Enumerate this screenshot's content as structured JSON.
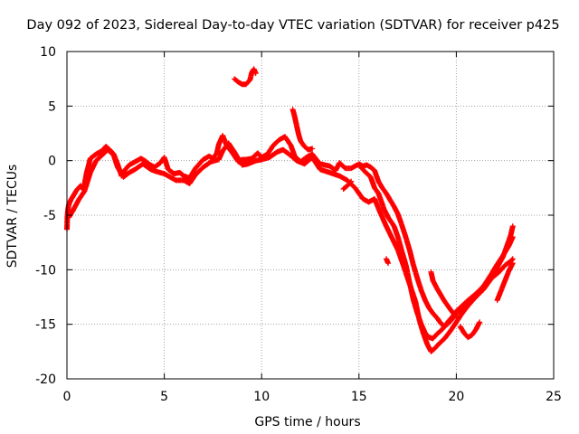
{
  "chart_data": {
    "type": "scatter",
    "title": "Day 092 of 2023, Sidereal Day-to-day VTEC variation (SDTVAR) for receiver p425",
    "xlabel": "GPS time / hours",
    "ylabel": "SDTVAR / TECUs",
    "xlim": [
      0,
      25
    ],
    "ylim": [
      -20,
      10
    ],
    "xticks": [
      0,
      5,
      10,
      15,
      20,
      25
    ],
    "yticks": [
      10,
      5,
      0,
      -5,
      -10,
      -15,
      -20
    ],
    "xtick_labels": [
      "0",
      "5",
      "10",
      "15",
      "20",
      "25"
    ],
    "ytick_labels": [
      "10",
      "5",
      "0",
      "-5",
      "-10",
      "-15",
      "-20"
    ],
    "grid": true,
    "marker": "+",
    "series": [
      {
        "name": "p425",
        "color": "#ff0000",
        "tracks": [
          [
            [
              0.0,
              -6.3
            ],
            [
              0.02,
              -5.2
            ],
            [
              0.05,
              -4.5
            ],
            [
              0.1,
              -4.0
            ],
            [
              0.2,
              -3.6
            ],
            [
              0.3,
              -3.3
            ],
            [
              0.4,
              -3.0
            ],
            [
              0.5,
              -2.7
            ],
            [
              0.6,
              -2.5
            ],
            [
              0.7,
              -2.3
            ],
            [
              0.8,
              -2.6
            ],
            [
              0.9,
              -2.2
            ],
            [
              1.0,
              -1.2
            ],
            [
              1.2,
              0.2
            ],
            [
              1.5,
              0.6
            ],
            [
              1.8,
              0.9
            ],
            [
              2.0,
              1.3
            ],
            [
              2.2,
              1.0
            ],
            [
              2.4,
              0.6
            ],
            [
              2.6,
              -0.3
            ],
            [
              2.8,
              -1.4
            ],
            [
              3.0,
              -0.8
            ],
            [
              3.2,
              -0.4
            ],
            [
              3.5,
              -0.1
            ],
            [
              3.8,
              0.2
            ],
            [
              4.0,
              0.0
            ],
            [
              4.2,
              -0.3
            ],
            [
              4.5,
              -0.6
            ],
            [
              4.8,
              -0.2
            ],
            [
              5.0,
              0.3
            ],
            [
              5.2,
              -0.8
            ],
            [
              5.5,
              -1.2
            ],
            [
              5.8,
              -1.1
            ],
            [
              6.0,
              -1.4
            ],
            [
              6.3,
              -1.6
            ],
            [
              6.6,
              -0.7
            ],
            [
              7.0,
              0.1
            ],
            [
              7.3,
              0.4
            ],
            [
              7.5,
              0.2
            ],
            [
              7.7,
              0.7
            ],
            [
              7.8,
              1.5
            ],
            [
              8.0,
              2.3
            ],
            [
              8.2,
              1.4
            ],
            [
              8.5,
              0.7
            ],
            [
              8.8,
              -0.1
            ],
            [
              9.0,
              0.1
            ],
            [
              9.2,
              0.1
            ],
            [
              9.5,
              0.2
            ],
            [
              9.8,
              0.7
            ],
            [
              10.0,
              0.3
            ],
            [
              10.3,
              0.6
            ],
            [
              10.6,
              1.4
            ],
            [
              10.9,
              1.9
            ],
            [
              11.2,
              2.2
            ],
            [
              11.5,
              1.4
            ],
            [
              11.7,
              0.4
            ],
            [
              12.0,
              -0.1
            ],
            [
              12.3,
              0.3
            ],
            [
              12.6,
              0.6
            ],
            [
              13.0,
              -0.3
            ],
            [
              13.5,
              -0.5
            ],
            [
              13.8,
              -0.9
            ],
            [
              14.0,
              -0.2
            ],
            [
              14.3,
              -0.7
            ],
            [
              14.6,
              -0.7
            ],
            [
              14.9,
              -0.4
            ],
            [
              15.0,
              -0.4
            ],
            [
              15.3,
              -1.0
            ],
            [
              15.6,
              -1.5
            ],
            [
              15.8,
              -2.5
            ],
            [
              16.0,
              -3.0
            ],
            [
              16.3,
              -4.5
            ],
            [
              16.5,
              -5.2
            ],
            [
              16.8,
              -6.0
            ],
            [
              17.0,
              -7.0
            ],
            [
              17.2,
              -8.3
            ],
            [
              17.4,
              -9.5
            ],
            [
              17.6,
              -11.2
            ],
            [
              17.8,
              -12.8
            ],
            [
              18.0,
              -14.0
            ],
            [
              18.2,
              -15.0
            ],
            [
              18.4,
              -15.8
            ],
            [
              18.6,
              -16.2
            ],
            [
              18.8,
              -16.3
            ],
            [
              19.0,
              -15.9
            ],
            [
              19.2,
              -15.6
            ],
            [
              19.4,
              -15.2
            ],
            [
              19.6,
              -14.7
            ],
            [
              19.8,
              -14.3
            ],
            [
              20.0,
              -13.8
            ],
            [
              20.3,
              -13.3
            ],
            [
              20.6,
              -12.8
            ],
            [
              21.0,
              -12.2
            ],
            [
              21.4,
              -11.5
            ],
            [
              21.8,
              -10.8
            ],
            [
              22.2,
              -10.2
            ],
            [
              22.5,
              -9.6
            ],
            [
              22.8,
              -9.2
            ],
            [
              22.9,
              -9.0
            ]
          ],
          [
            [
              0.1,
              -5.2
            ],
            [
              0.3,
              -4.6
            ],
            [
              0.6,
              -3.6
            ],
            [
              0.9,
              -2.8
            ],
            [
              1.2,
              -1.1
            ],
            [
              1.5,
              0.0
            ],
            [
              1.8,
              0.5
            ],
            [
              2.1,
              1.0
            ],
            [
              2.4,
              0.5
            ],
            [
              2.6,
              -0.6
            ],
            [
              2.9,
              -1.5
            ],
            [
              3.2,
              -1.1
            ],
            [
              3.5,
              -0.8
            ],
            [
              3.9,
              -0.3
            ],
            [
              4.3,
              -0.8
            ],
            [
              4.6,
              -1.0
            ],
            [
              5.0,
              -1.2
            ],
            [
              5.3,
              -1.5
            ],
            [
              5.6,
              -1.8
            ],
            [
              6.0,
              -1.8
            ],
            [
              6.3,
              -2.1
            ],
            [
              6.6,
              -1.3
            ],
            [
              7.0,
              -0.6
            ],
            [
              7.4,
              -0.1
            ],
            [
              7.8,
              0.1
            ],
            [
              8.0,
              0.9
            ],
            [
              8.3,
              1.6
            ],
            [
              8.6,
              0.8
            ],
            [
              9.0,
              -0.4
            ],
            [
              9.3,
              -0.3
            ],
            [
              9.7,
              0.0
            ],
            [
              10.0,
              0.1
            ],
            [
              10.4,
              0.3
            ],
            [
              10.8,
              0.8
            ],
            [
              11.1,
              1.0
            ],
            [
              11.4,
              0.6
            ],
            [
              11.8,
              0.0
            ],
            [
              12.2,
              -0.3
            ],
            [
              12.6,
              0.3
            ],
            [
              13.0,
              -0.8
            ],
            [
              13.5,
              -1.1
            ],
            [
              14.0,
              -1.4
            ],
            [
              14.4,
              -1.8
            ],
            [
              14.8,
              -2.5
            ],
            [
              15.2,
              -3.5
            ],
            [
              15.5,
              -3.8
            ],
            [
              15.8,
              -3.5
            ],
            [
              16.1,
              -4.8
            ],
            [
              16.4,
              -6.0
            ],
            [
              16.7,
              -7.1
            ],
            [
              17.0,
              -8.2
            ],
            [
              17.3,
              -9.7
            ],
            [
              17.6,
              -11.3
            ],
            [
              17.9,
              -12.9
            ],
            [
              18.1,
              -14.6
            ],
            [
              18.3,
              -15.8
            ],
            [
              18.5,
              -16.8
            ],
            [
              18.7,
              -17.5
            ],
            [
              18.9,
              -17.2
            ],
            [
              19.1,
              -16.8
            ],
            [
              19.4,
              -16.3
            ],
            [
              19.7,
              -15.6
            ],
            [
              20.0,
              -14.8
            ],
            [
              20.3,
              -14.0
            ],
            [
              20.6,
              -13.3
            ],
            [
              21.0,
              -12.5
            ],
            [
              21.4,
              -11.5
            ],
            [
              21.8,
              -10.4
            ],
            [
              22.1,
              -9.5
            ],
            [
              22.4,
              -8.7
            ],
            [
              22.7,
              -7.8
            ],
            [
              22.9,
              -7.0
            ]
          ],
          [
            [
              15.0,
              -0.3
            ],
            [
              15.2,
              -0.5
            ],
            [
              15.4,
              -0.4
            ],
            [
              15.6,
              -0.6
            ],
            [
              15.8,
              -0.9
            ],
            [
              16.0,
              -1.9
            ],
            [
              16.2,
              -2.5
            ],
            [
              16.4,
              -3.0
            ],
            [
              16.6,
              -3.6
            ],
            [
              16.8,
              -4.2
            ],
            [
              17.0,
              -4.9
            ],
            [
              17.2,
              -5.9
            ],
            [
              17.4,
              -7.0
            ],
            [
              17.6,
              -8.2
            ],
            [
              17.8,
              -9.6
            ],
            [
              18.0,
              -10.8
            ],
            [
              18.2,
              -11.9
            ],
            [
              18.4,
              -12.8
            ],
            [
              18.6,
              -13.5
            ],
            [
              18.8,
              -14.0
            ],
            [
              19.0,
              -14.4
            ],
            [
              19.2,
              -14.9
            ],
            [
              19.4,
              -15.2
            ],
            [
              19.6,
              -14.9
            ],
            [
              19.8,
              -14.5
            ],
            [
              20.0,
              -14.0
            ],
            [
              20.3,
              -13.6
            ],
            [
              20.6,
              -13.1
            ],
            [
              21.0,
              -12.5
            ],
            [
              21.4,
              -11.8
            ],
            [
              21.8,
              -10.8
            ],
            [
              22.1,
              -9.8
            ],
            [
              22.4,
              -8.8
            ],
            [
              22.6,
              -7.8
            ],
            [
              22.8,
              -6.8
            ],
            [
              22.9,
              -6.0
            ]
          ],
          [
            [
              8.6,
              7.5
            ],
            [
              8.8,
              7.2
            ],
            [
              9.0,
              7.0
            ],
            [
              9.2,
              7.0
            ],
            [
              9.4,
              7.4
            ],
            [
              9.5,
              8.1
            ],
            [
              9.6,
              8.4
            ],
            [
              9.7,
              8.0
            ]
          ],
          [
            [
              11.6,
              4.7
            ],
            [
              11.7,
              4.0
            ],
            [
              11.8,
              3.2
            ],
            [
              11.9,
              2.4
            ],
            [
              12.0,
              1.8
            ],
            [
              12.2,
              1.3
            ],
            [
              12.4,
              1.0
            ],
            [
              12.6,
              1.1
            ]
          ],
          [
            [
              18.7,
              -10.2
            ],
            [
              18.8,
              -11.0
            ],
            [
              19.0,
              -11.7
            ],
            [
              19.2,
              -12.3
            ],
            [
              19.4,
              -12.9
            ],
            [
              19.6,
              -13.4
            ],
            [
              19.8,
              -13.9
            ],
            [
              20.0,
              -14.3
            ]
          ],
          [
            [
              16.4,
              -9.0
            ],
            [
              16.5,
              -9.4
            ]
          ],
          [
            [
              20.2,
              -15.2
            ],
            [
              20.4,
              -15.8
            ],
            [
              20.6,
              -16.2
            ],
            [
              20.8,
              -16.0
            ],
            [
              21.0,
              -15.5
            ],
            [
              21.2,
              -14.8
            ]
          ],
          [
            [
              22.1,
              -12.8
            ],
            [
              22.3,
              -11.9
            ],
            [
              22.5,
              -11.0
            ],
            [
              22.7,
              -10.1
            ],
            [
              22.9,
              -9.4
            ]
          ],
          [
            [
              14.2,
              -2.6
            ],
            [
              14.4,
              -2.3
            ],
            [
              14.6,
              -1.9
            ]
          ]
        ]
      }
    ]
  }
}
